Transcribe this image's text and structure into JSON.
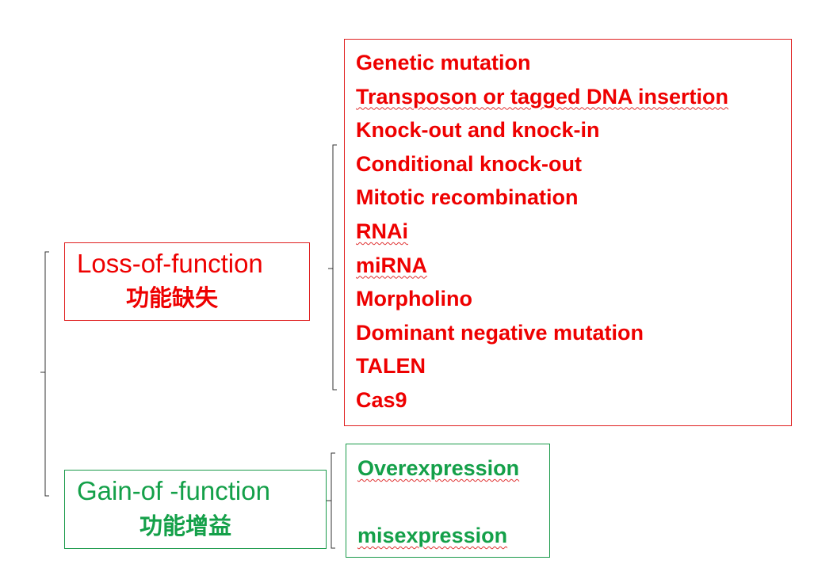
{
  "loss": {
    "title_en": "Loss-of-function",
    "title_zh": "功能缺失",
    "methods": [
      "Genetic mutation",
      "Transposon or tagged DNA insertion",
      "Knock-out and knock-in",
      "Conditional knock-out",
      "Mitotic recombination",
      "RNAi",
      "miRNA",
      "Morpholino",
      "Dominant negative mutation",
      "TALEN",
      "Cas9"
    ]
  },
  "gain": {
    "title_en": "Gain-of -function",
    "title_zh": "功能增益",
    "methods": [
      "Overexpression",
      "misexpression"
    ]
  },
  "colors": {
    "loss": "#ee0000",
    "gain": "#14a049",
    "bracket": "#333333"
  }
}
